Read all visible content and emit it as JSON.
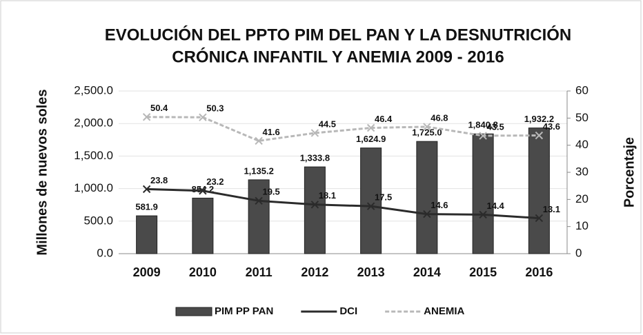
{
  "chart_data": {
    "type": "bar",
    "title": [
      "EVOLUCIÓN DEL PPTO PIM DEL PAN  Y LA DESNUTRICIÓN",
      "CRÓNICA INFANTIL Y ANEMIA 2009 - 2016"
    ],
    "ylabel": "Millones de nuevos soles",
    "y2label": "Porcentaje",
    "categories": [
      "2009",
      "2010",
      "2011",
      "2012",
      "2013",
      "2014",
      "2015",
      "2016"
    ],
    "series": [
      {
        "name": "PIM PP PAN",
        "type": "bar",
        "color": "#4a4a4a",
        "values": [
          581.9,
          854.2,
          1135.2,
          1333.8,
          1624.9,
          1725.0,
          1840.8,
          1932.2
        ],
        "value_labels": [
          "581.9",
          "854.2",
          "1,135.2",
          "1,333.8",
          "1,624.9",
          "1,725.0",
          "1,840.8",
          "1,932.2"
        ]
      },
      {
        "name": "DCI",
        "type": "line",
        "axis": "y2",
        "color": "#2b2b2b",
        "values": [
          23.8,
          23.2,
          19.5,
          18.1,
          17.5,
          14.6,
          14.4,
          13.1
        ]
      },
      {
        "name": "ANEMIA",
        "type": "line",
        "axis": "y2",
        "color": "#b8b8b8",
        "dashed": true,
        "values": [
          50.4,
          50.3,
          41.6,
          44.5,
          46.4,
          46.8,
          43.5,
          43.6
        ]
      }
    ],
    "ylim": [
      0,
      2500
    ],
    "yticks": [
      {
        "value": 0,
        "label": "0.0"
      },
      {
        "value": 500,
        "label": "500.0"
      },
      {
        "value": 1000,
        "label": "1,000.0"
      },
      {
        "value": 1500,
        "label": "1,500.0"
      },
      {
        "value": 2000,
        "label": "2,000.0"
      },
      {
        "value": 2500,
        "label": "2,500.0"
      }
    ],
    "y2lim": [
      0,
      60
    ],
    "y2ticks": [
      0,
      10,
      20,
      30,
      40,
      50,
      60
    ],
    "legend": "bottom"
  }
}
